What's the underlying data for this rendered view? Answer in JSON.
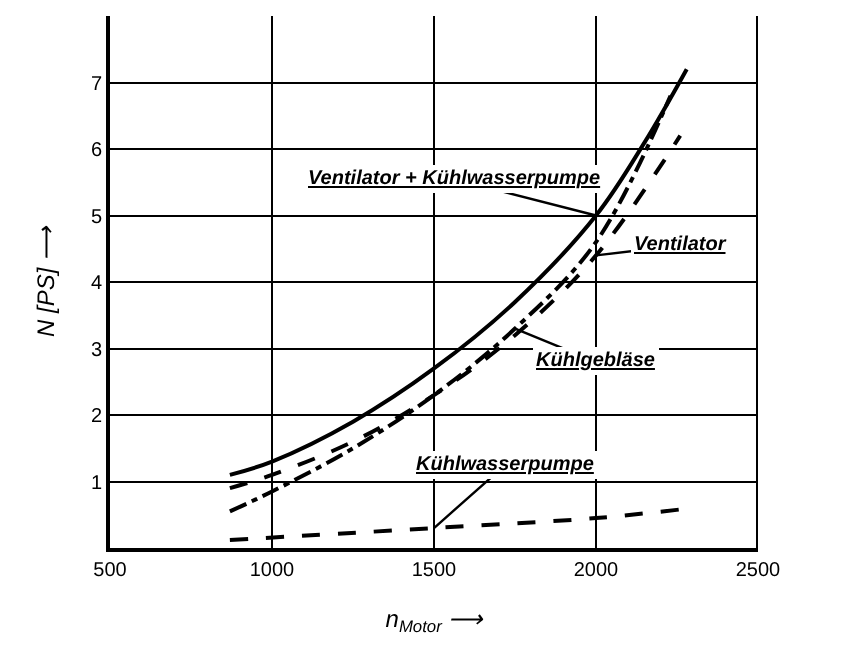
{
  "chart_data": {
    "type": "line",
    "xlabel": "n$_{Motor}$ ⟶",
    "ylabel": "N [PS] ⟶",
    "xlim": [
      500,
      2500
    ],
    "xticks": [
      500,
      1000,
      1500,
      2000,
      2500
    ],
    "ylim": [
      0,
      8
    ],
    "yticks": [
      1,
      2,
      3,
      4,
      5,
      6,
      7
    ],
    "grid": true,
    "legend": false,
    "series": [
      {
        "name": "Ventilator + Kühlwasserpumpe",
        "color": "#000000",
        "line_style": "solid",
        "x": [
          870,
          1000,
          1250,
          1500,
          1750,
          2000,
          2150,
          2280
        ],
        "values": [
          1.1,
          1.3,
          1.9,
          2.7,
          3.7,
          5.0,
          6.1,
          7.2
        ]
      },
      {
        "name": "Ventilator",
        "color": "#000000",
        "line_style": "dashed",
        "x": [
          870,
          1000,
          1250,
          1500,
          1750,
          2000,
          2260
        ],
        "values": [
          0.9,
          1.1,
          1.6,
          2.3,
          3.2,
          4.4,
          6.2
        ]
      },
      {
        "name": "Kühlgebläse",
        "color": "#000000",
        "line_style": "dashdot",
        "x": [
          870,
          1000,
          1250,
          1500,
          1750,
          2000,
          2230
        ],
        "values": [
          0.55,
          0.85,
          1.5,
          2.3,
          3.3,
          4.6,
          6.8
        ]
      },
      {
        "name": "Kühlwasserpumpe",
        "color": "#000000",
        "line_style": "dashed",
        "x": [
          870,
          1500,
          2000,
          2260
        ],
        "values": [
          0.12,
          0.3,
          0.45,
          0.58
        ]
      }
    ]
  }
}
